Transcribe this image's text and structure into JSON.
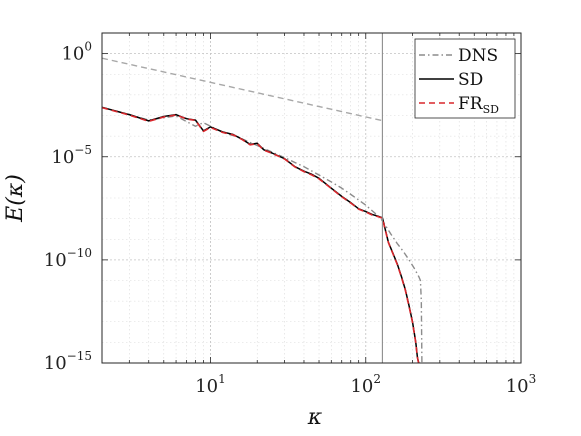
{
  "chart_data": {
    "type": "line",
    "xscale": "log",
    "yscale": "log",
    "xlabel": "κ",
    "ylabel": "E(κ)",
    "xlim": [
      2,
      1000
    ],
    "ylim": [
      1e-15,
      10
    ],
    "x_ticks": [
      {
        "base": "10",
        "exp": "1"
      },
      {
        "base": "10",
        "exp": "2"
      },
      {
        "base": "10",
        "exp": "3"
      }
    ],
    "y_ticks": [
      {
        "base": "10",
        "exp": "0",
        "text": "10⁰"
      },
      {
        "base": "10",
        "exp": "−5"
      },
      {
        "base": "10",
        "exp": "−10"
      },
      {
        "base": "10",
        "exp": "−15"
      }
    ],
    "y_tick_values": [
      1,
      1e-05,
      1e-10,
      1e-15
    ],
    "x_tick_values": [
      10,
      100,
      1000
    ],
    "grid": true,
    "legend_position": "top-right",
    "vertical_line_x": 128,
    "colors": {
      "DNS": "#8c8c8c",
      "SD": "#000000",
      "FR_SD": "#d9262b",
      "Model": "#a8a8a8",
      "vline": "#8c8c8c"
    },
    "legend": [
      {
        "text": "DNS",
        "sub": "",
        "color": "#8c8c8c",
        "dash": "6 3 1.5 3",
        "width": 1.4
      },
      {
        "text": "SD",
        "sub": "",
        "color": "#000000",
        "dash": "",
        "width": 1.5
      },
      {
        "text": "FR",
        "sub": "SD",
        "color": "#d9262b",
        "dash": "6 4",
        "width": 1.6
      }
    ],
    "series": [
      {
        "name": "",
        "key": "Model",
        "style": "dashed",
        "x": [
          2,
          130
        ],
        "y": [
          0.6,
          0.00055
        ]
      },
      {
        "name": "DNS",
        "key": "DNS",
        "style": "dashdot",
        "x": [
          2,
          3,
          4,
          6,
          8,
          9,
          12,
          15,
          20,
          30,
          40,
          50,
          60,
          70,
          80,
          90,
          100,
          115,
          128,
          145,
          160,
          175,
          190,
          205,
          220,
          225,
          228,
          230
        ],
        "y": [
          0.0025,
          0.0011,
          0.0006,
          0.00095,
          0.0003,
          0.00045,
          0.00015,
          9e-05,
          3.5e-05,
          9e-06,
          3.3e-06,
          1.3e-06,
          6e-07,
          3e-07,
          1.5e-07,
          8e-08,
          4.5e-08,
          1.8e-08,
          8e-09,
          1.8e-09,
          6e-10,
          2.5e-10,
          1e-10,
          4e-11,
          1.5e-11,
          1e-11,
          1e-12,
          1e-15
        ]
      },
      {
        "name": "SD",
        "key": "SD",
        "style": "solid",
        "x": [
          2,
          3,
          4,
          5,
          6,
          7,
          8,
          9,
          10,
          12,
          14,
          16,
          18,
          20,
          22,
          25,
          30,
          35,
          40,
          45,
          50,
          60,
          70,
          80,
          90,
          100,
          110,
          120,
          128,
          140,
          150,
          160,
          170,
          180,
          190,
          200,
          210,
          215,
          218,
          220
        ],
        "y": [
          0.0025,
          0.0011,
          0.00055,
          0.0009,
          0.0011,
          0.0007,
          0.0006,
          0.00018,
          0.00028,
          0.00016,
          0.00012,
          7e-05,
          4e-05,
          4.5e-05,
          2.2e-05,
          1.5e-05,
          8e-06,
          3.3e-06,
          2e-06,
          1.4e-06,
          9e-07,
          3e-07,
          1.2e-07,
          6e-08,
          3e-08,
          2.2e-08,
          1.6e-08,
          1.3e-08,
          1.1e-08,
          7e-10,
          2e-10,
          6e-11,
          1.5e-11,
          3.5e-12,
          6e-13,
          1e-13,
          1e-14,
          2e-15,
          1.2e-15,
          1e-15
        ]
      },
      {
        "name": "FR_SD",
        "key": "FR_SD",
        "style": "dashed",
        "x": [
          2,
          3,
          4,
          5,
          6,
          7,
          8,
          9,
          10,
          12,
          14,
          16,
          18,
          20,
          22,
          25,
          30,
          35,
          40,
          45,
          50,
          60,
          70,
          80,
          90,
          100,
          110,
          120,
          128,
          140,
          150,
          160,
          170,
          180,
          190,
          200,
          210,
          215,
          218,
          220
        ],
        "y": [
          0.0024,
          0.00105,
          0.00052,
          0.00085,
          0.00105,
          0.00068,
          0.00058,
          0.00017,
          0.00026,
          0.00015,
          0.000115,
          6.8e-05,
          3.8e-05,
          4.3e-05,
          2.1e-05,
          1.45e-05,
          7.8e-06,
          3.2e-06,
          1.9e-06,
          1.3e-06,
          8.5e-07,
          2.9e-07,
          1.15e-07,
          5.7e-08,
          2.9e-08,
          2.1e-08,
          1.5e-08,
          1.25e-08,
          1.05e-08,
          6.8e-10,
          1.9e-10,
          5.7e-11,
          1.4e-11,
          3.3e-12,
          5.6e-13,
          9.5e-14,
          9.5e-15,
          1.9e-15,
          1.15e-15,
          1e-15
        ]
      }
    ]
  }
}
